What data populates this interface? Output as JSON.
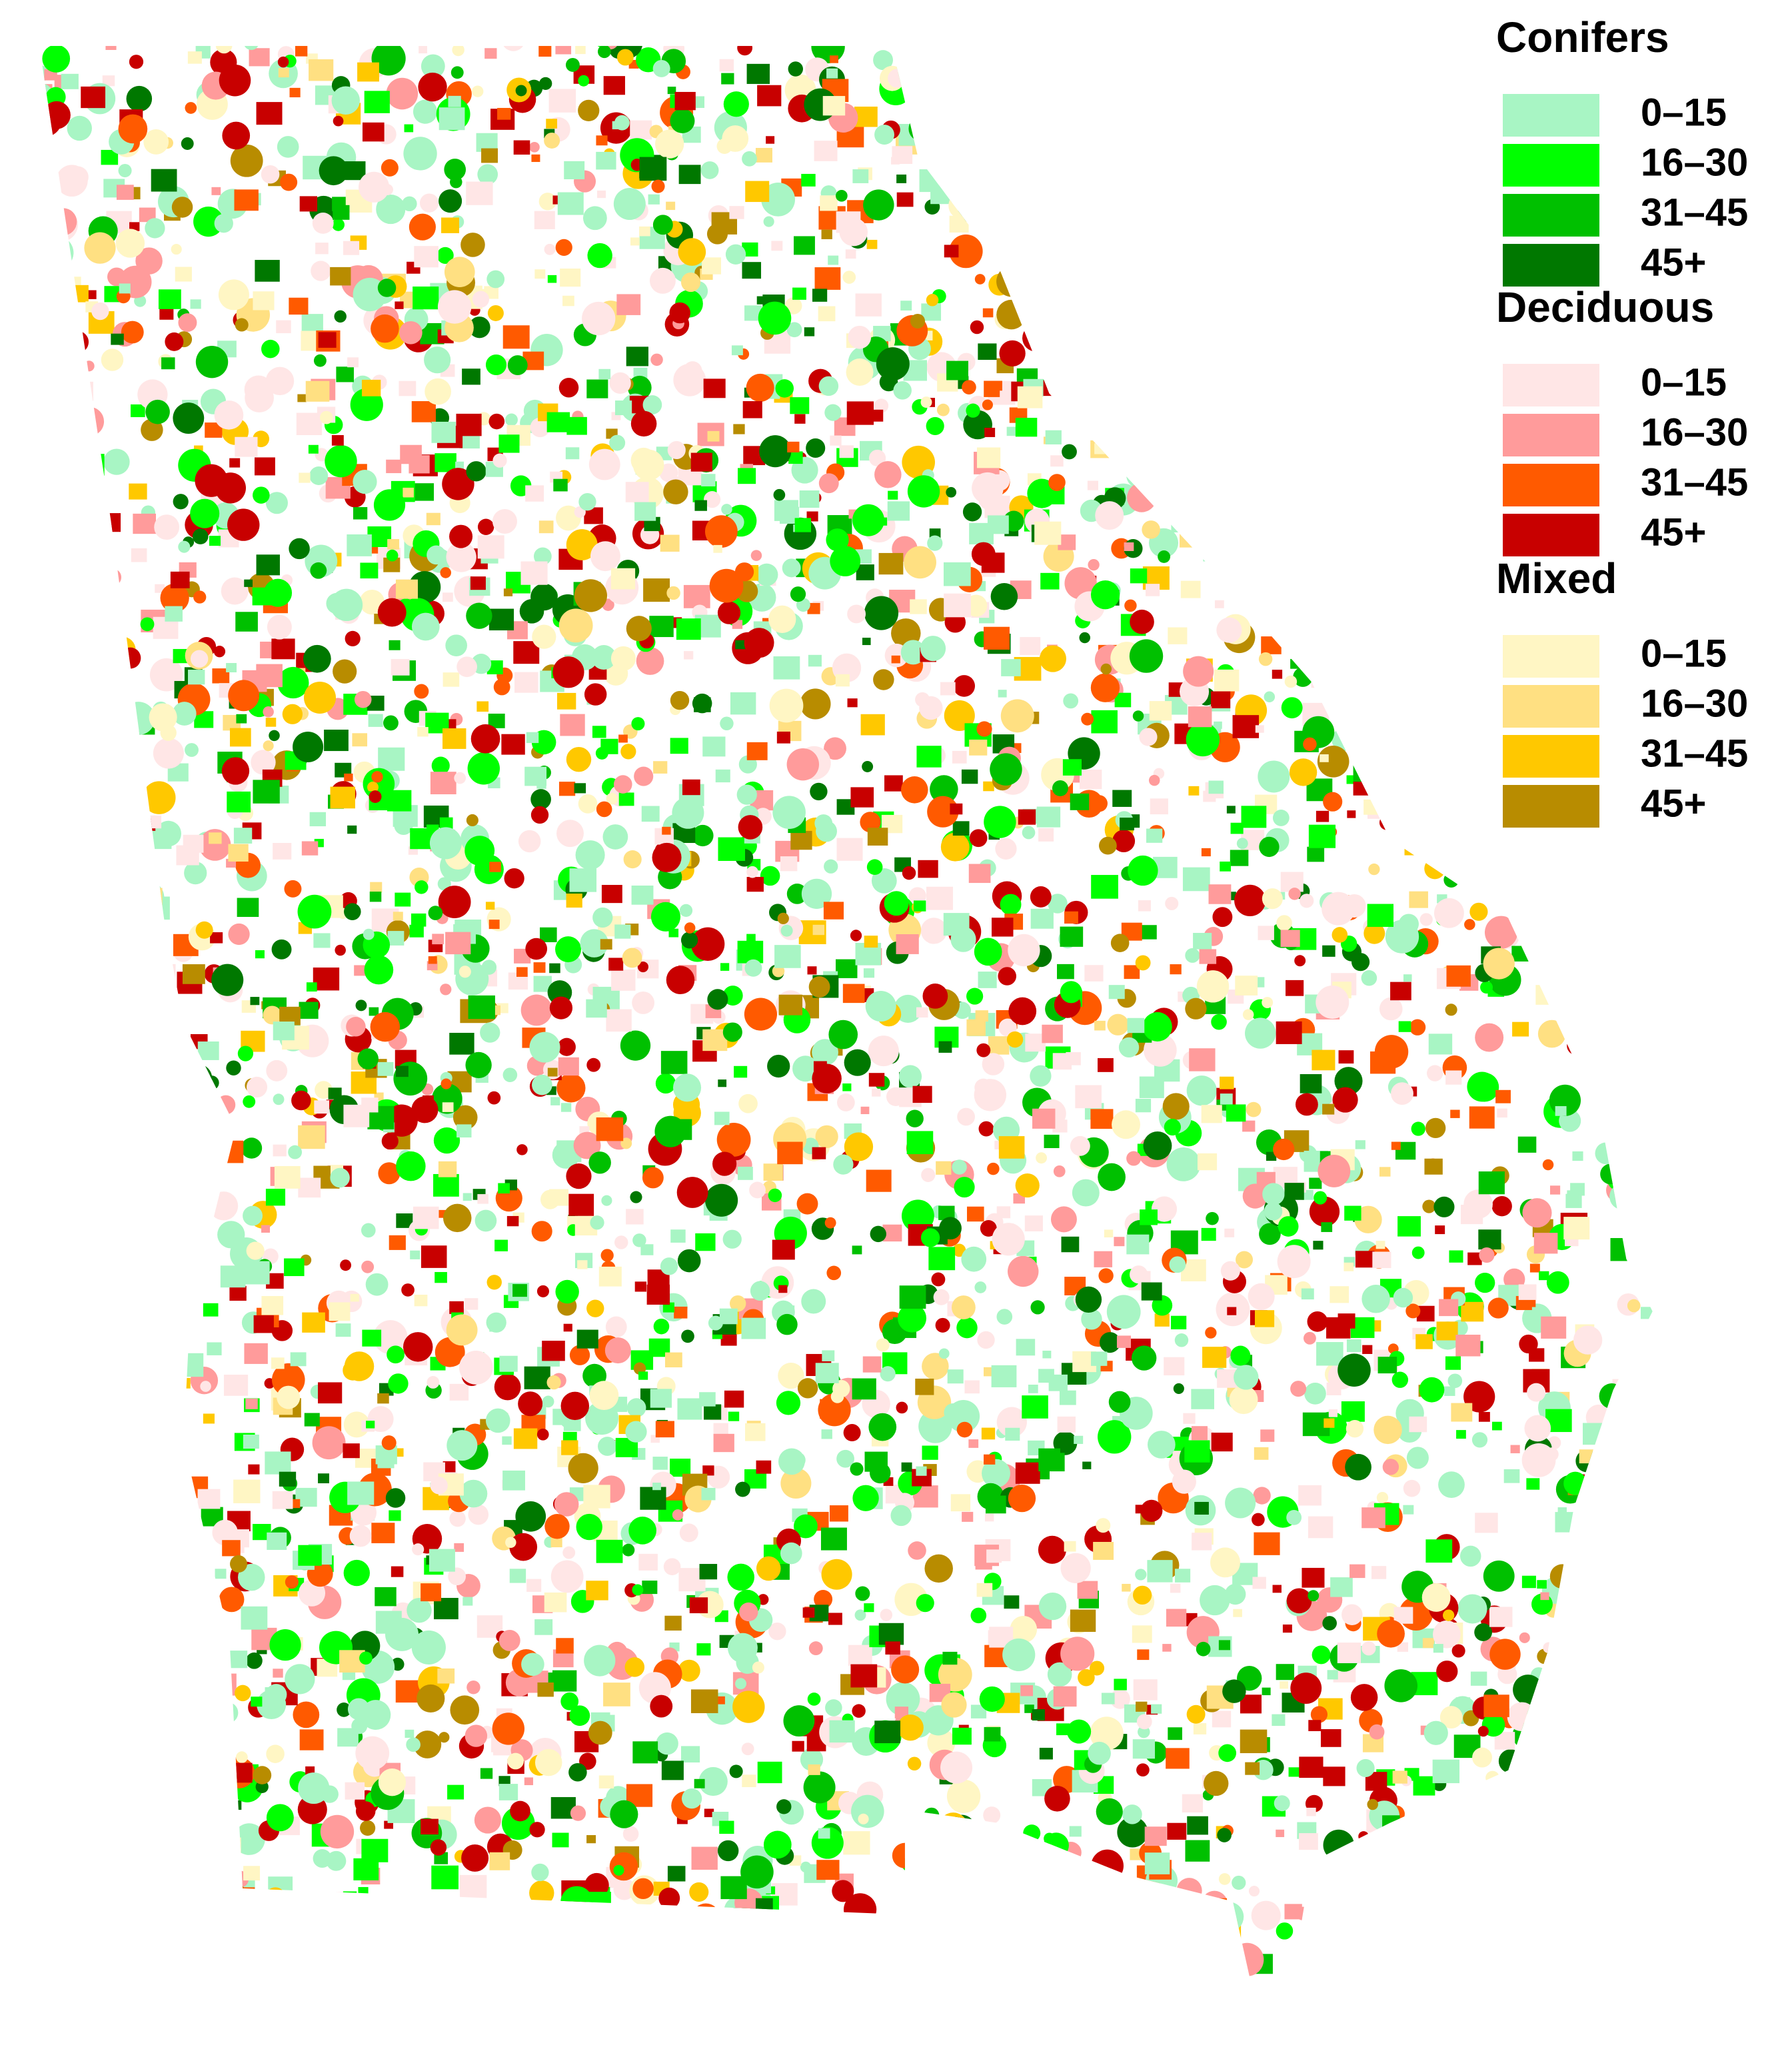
{
  "legend": {
    "groups": [
      {
        "title": "Conifers",
        "items": [
          {
            "label": "0–15",
            "color": "#a8f5c4"
          },
          {
            "label": "16–30",
            "color": "#00ff00"
          },
          {
            "label": "31–45",
            "color": "#00c000"
          },
          {
            "label": "45+",
            "color": "#007800"
          }
        ]
      },
      {
        "title": "Deciduous",
        "items": [
          {
            "label": "0–15",
            "color": "#ffe6e6"
          },
          {
            "label": "16–30",
            "color": "#ff9b9b"
          },
          {
            "label": "31–45",
            "color": "#ff5a00"
          },
          {
            "label": "45+",
            "color": "#c80000"
          }
        ]
      },
      {
        "title": "Mixed",
        "items": [
          {
            "label": "0–15",
            "color": "#fff6c4"
          },
          {
            "label": "16–30",
            "color": "#ffe082"
          },
          {
            "label": "31–45",
            "color": "#ffc800"
          },
          {
            "label": "45+",
            "color": "#b88c00"
          }
        ]
      }
    ]
  }
}
